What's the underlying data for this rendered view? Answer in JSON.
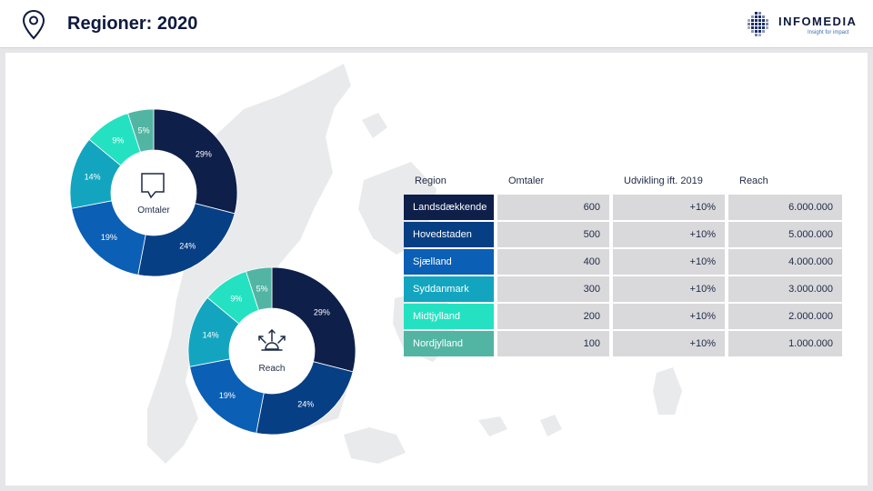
{
  "header": {
    "title": "Regioner: 2020",
    "logo": {
      "name": "INFOMEDIA",
      "tagline": "Insight for impact"
    }
  },
  "colors": {
    "Landsdækkende": "#0e1f4a",
    "Hovedstaden": "#073f84",
    "Sjælland": "#0b5fb5",
    "Syddanmark": "#13a5bf",
    "Midtjylland": "#24e2c1",
    "Nordjylland": "#52b5a3"
  },
  "chart_data": [
    {
      "type": "pie",
      "center_label": "Omtaler",
      "center_icon": "speech-bubble-icon",
      "categories": [
        "Landsdækkende",
        "Hovedstaden",
        "Sjælland",
        "Syddanmark",
        "Midtjylland",
        "Nordjylland"
      ],
      "values": [
        29,
        24,
        19,
        14,
        9,
        5
      ],
      "labels": [
        "29%",
        "24%",
        "19%",
        "14%",
        "9%",
        "5%"
      ]
    },
    {
      "type": "pie",
      "center_label": "Reach",
      "center_icon": "broadcast-arrows-icon",
      "categories": [
        "Landsdækkende",
        "Hovedstaden",
        "Sjælland",
        "Syddanmark",
        "Midtjylland",
        "Nordjylland"
      ],
      "values": [
        29,
        24,
        19,
        14,
        9,
        5
      ],
      "labels": [
        "29%",
        "24%",
        "19%",
        "14%",
        "9%",
        "5%"
      ]
    },
    {
      "type": "table",
      "columns": [
        "Region",
        "Omtaler",
        "Udvikling ift. 2019",
        "Reach"
      ],
      "rows": [
        [
          "Landsdækkende",
          "600",
          "+10%",
          "6.000.000"
        ],
        [
          "Hovedstaden",
          "500",
          "+10%",
          "5.000.000"
        ],
        [
          "Sjælland",
          "400",
          "+10%",
          "4.000.000"
        ],
        [
          "Syddanmark",
          "300",
          "+10%",
          "3.000.000"
        ],
        [
          "Midtjylland",
          "200",
          "+10%",
          "2.000.000"
        ],
        [
          "Nordjylland",
          "100",
          "+10%",
          "1.000.000"
        ]
      ]
    }
  ]
}
